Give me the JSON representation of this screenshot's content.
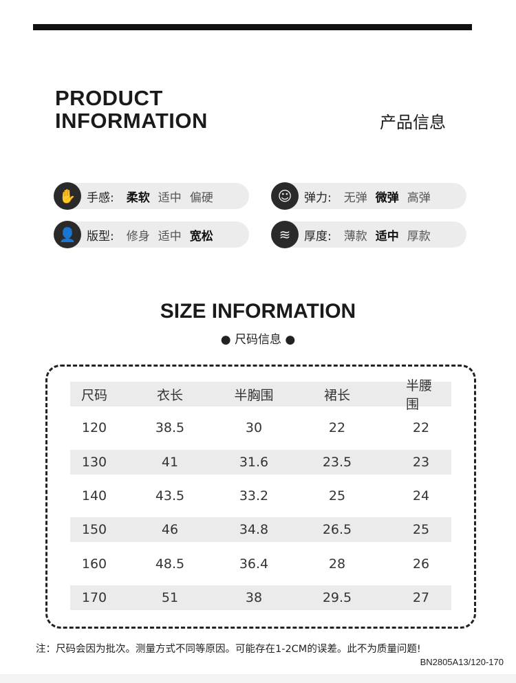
{
  "header": {
    "title_en_1": "PRODUCT",
    "title_en_2": "INFORMATION",
    "title_cn": "产品信息"
  },
  "attributes": [
    {
      "icon": "hand-feel-icon",
      "label": "手感:",
      "options": [
        "柔软",
        "适中",
        "偏硬"
      ],
      "selected": 0
    },
    {
      "icon": "elasticity-icon",
      "label": "弹力:",
      "options": [
        "无弹",
        "微弹",
        "高弹"
      ],
      "selected": 1
    },
    {
      "icon": "fit-icon",
      "label": "版型:",
      "options": [
        "修身",
        "适中",
        "宽松"
      ],
      "selected": 2
    },
    {
      "icon": "thickness-icon",
      "label": "厚度:",
      "options": [
        "薄款",
        "适中",
        "厚款"
      ],
      "selected": 1
    }
  ],
  "size": {
    "title_en": "SIZE INFORMATION",
    "title_cn": "● 尺码信息 ●"
  },
  "table": {
    "headers": [
      "尺码",
      "衣长",
      "半胸围",
      "裙长",
      "半腰围"
    ],
    "rows": [
      [
        "120",
        "38.5",
        "30",
        "22",
        "22"
      ],
      [
        "130",
        "41",
        "31.6",
        "23.5",
        "23"
      ],
      [
        "140",
        "43.5",
        "33.2",
        "25",
        "24"
      ],
      [
        "150",
        "46",
        "34.8",
        "26.5",
        "25"
      ],
      [
        "160",
        "48.5",
        "36.4",
        "28",
        "26"
      ],
      [
        "170",
        "51",
        "38",
        "29.5",
        "27"
      ]
    ]
  },
  "note": "注：尺码会因为批次。测量方式不同等原因。可能存在1-2CM的误差。此不为质量问题!",
  "code": "BN2805A13/120-170"
}
